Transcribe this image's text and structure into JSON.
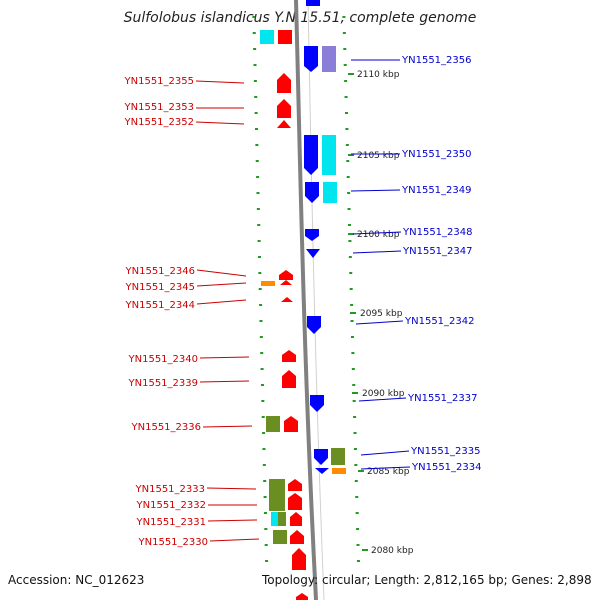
{
  "title": "Sulfolobus islandicus Y.N.15.51, complete genome",
  "footer": {
    "accession": "Accession: NC_012623",
    "topology": "Topology: circular; Length: 2,812,165 bp; Genes: 2,898"
  },
  "scale_labels": [
    "2110 kbp",
    "2105 kbp",
    "2100 kbp",
    "2095 kbp",
    "2090 kbp",
    "2085 kbp",
    "2080 kbp"
  ],
  "left_genes": [
    "YN1551_2355",
    "YN1551_2353",
    "YN1551_2352",
    "YN1551_2346",
    "YN1551_2345",
    "YN1551_2344",
    "YN1551_2340",
    "YN1551_2339",
    "YN1551_2336",
    "YN1551_2333",
    "YN1551_2332",
    "YN1551_2331",
    "YN1551_2330"
  ],
  "right_genes": [
    "YN1551_2356",
    "YN1551_2350",
    "YN1551_2349",
    "YN1551_2348",
    "YN1551_2347",
    "YN1551_2342",
    "YN1551_2337",
    "YN1551_2335",
    "YN1551_2334"
  ],
  "colors": {
    "minus_strand_gene": "#ff0000",
    "plus_strand_gene": "#0000ff",
    "left_label": "#cc0000",
    "right_label": "#0000cc",
    "cog_cyan": "#00e5ee",
    "cog_green": "#6b8e23",
    "cog_orange": "#ff8c00",
    "cog_lavender": "#8a7fd8",
    "backbone": "#888888",
    "tick": "#229922"
  }
}
